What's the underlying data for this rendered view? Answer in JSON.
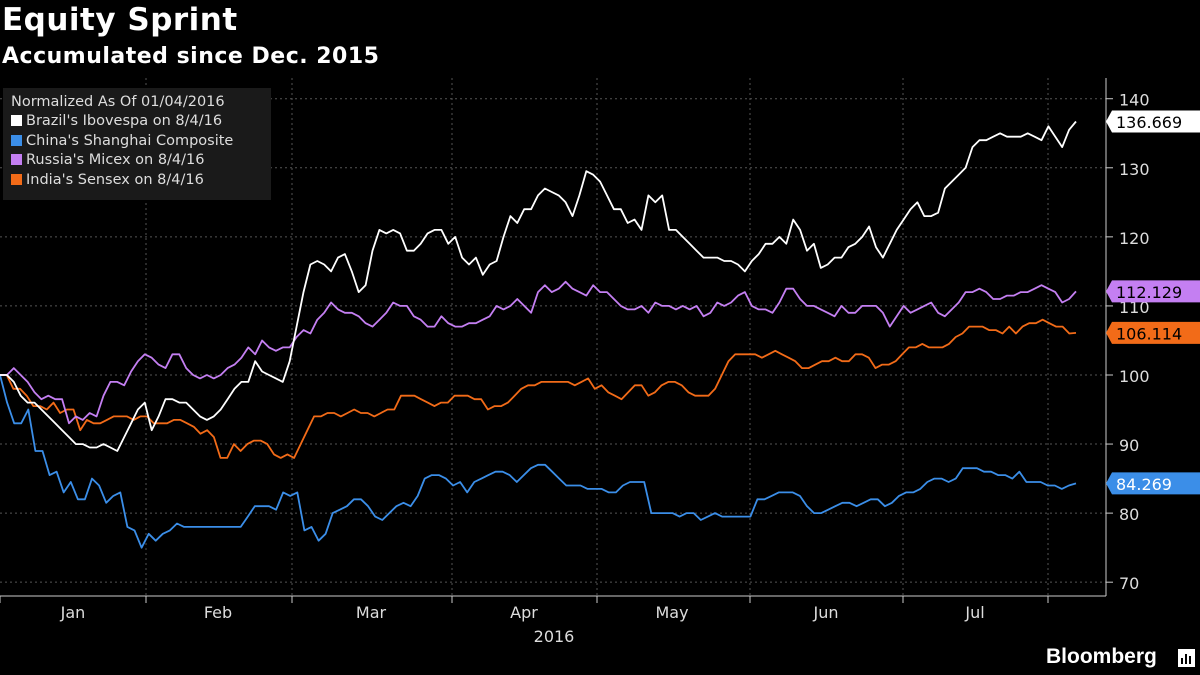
{
  "title": "Equity Sprint",
  "subtitle": "Accumulated since Dec. 2015",
  "brand": "Bloomberg",
  "brand_icon": "bloomberg-terminal-icon",
  "chart_data": {
    "type": "line",
    "x_year_label": "2016",
    "month_labels": [
      "Jan",
      "Feb",
      "Mar",
      "Apr",
      "May",
      "Jun",
      "Jul"
    ],
    "ylim": [
      68,
      143
    ],
    "y_ticks": [
      "70",
      "80",
      "90",
      "100",
      "110",
      "120",
      "130",
      "140"
    ],
    "grid": true,
    "legend_title": "Normalized As Of 01/04/2016",
    "legend_position": "top-left",
    "series": [
      {
        "name": "Brazil's Ibovespa on 8/4/16",
        "color": "#ffffff",
        "last_label": "136.669",
        "values": [
          100,
          100,
          99,
          97,
          96,
          96,
          95,
          94,
          93,
          92,
          91,
          90,
          90,
          89.5,
          89.5,
          90,
          89.5,
          89,
          91,
          93,
          95,
          96,
          92,
          94,
          96.5,
          96.5,
          96,
          96,
          95,
          94,
          93.5,
          94,
          95,
          96.5,
          98,
          99,
          99,
          102,
          100.5,
          100,
          99.5,
          99,
          102,
          107,
          112,
          116,
          116.5,
          116,
          115,
          117,
          117.5,
          115,
          112,
          113,
          118,
          121,
          120.5,
          121,
          120.5,
          118,
          118,
          119,
          120.5,
          121,
          121,
          119,
          120,
          117,
          116,
          117,
          114.5,
          116,
          116.5,
          120,
          123,
          122,
          124,
          124,
          126,
          127,
          126.5,
          126,
          125,
          123,
          126,
          129.5,
          129,
          128,
          126,
          124,
          124,
          122,
          122.5,
          121,
          126,
          125,
          126,
          121,
          121,
          120,
          119,
          118,
          117,
          117,
          117,
          116.5,
          116.5,
          116,
          115,
          116.5,
          117.5,
          119,
          119,
          120,
          119,
          122.5,
          121,
          118,
          119,
          115.5,
          116,
          117,
          117,
          118.5,
          119,
          120,
          121.5,
          118.5,
          117,
          119,
          121,
          122.5,
          124,
          125,
          123,
          123,
          123.5,
          127,
          128,
          129,
          130,
          133,
          134,
          134,
          134.5,
          135,
          134.5,
          134.5,
          134.5,
          135,
          134.5,
          134,
          136,
          134.5,
          133,
          135.5,
          136.7
        ]
      },
      {
        "name": "China's Shanghai Composite",
        "color": "#3b8ee8",
        "last_label": "84.269",
        "values": [
          100,
          96,
          93,
          93,
          95,
          89,
          89,
          85.5,
          86,
          83,
          84.5,
          82,
          82,
          85,
          84,
          81.5,
          82.5,
          83,
          78,
          77.5,
          75,
          77,
          76,
          77,
          77.5,
          78.5,
          78,
          78,
          78,
          78,
          78,
          78,
          78,
          78,
          78,
          79.5,
          81,
          81,
          81,
          80.5,
          83,
          82.5,
          83,
          77.5,
          78,
          76,
          77,
          80,
          80.5,
          81,
          82,
          82,
          81,
          79.5,
          79,
          80,
          81,
          81.5,
          81,
          82.5,
          85,
          85.5,
          85.5,
          85,
          84,
          84.5,
          83,
          84.5,
          85,
          85.5,
          86,
          86,
          85.5,
          84.5,
          85.5,
          86.5,
          87,
          87,
          86,
          85,
          84,
          84,
          84,
          83.5,
          83.5,
          83.5,
          83,
          83,
          84,
          84.5,
          84.5,
          84.5,
          80,
          80,
          80,
          80,
          79.5,
          80,
          80,
          79,
          79.5,
          80,
          79.5,
          79.5,
          79.5,
          79.5,
          79.5,
          82,
          82,
          82.5,
          83,
          83,
          83,
          82.5,
          81,
          80,
          80,
          80.5,
          81,
          81.5,
          81.5,
          81,
          81.5,
          82,
          82,
          81,
          81.5,
          82.5,
          83,
          83,
          83.5,
          84.5,
          85,
          85,
          84.5,
          85,
          86.5,
          86.5,
          86.5,
          86,
          86,
          85.5,
          85.5,
          85,
          86,
          84.5,
          84.5,
          84.5,
          84,
          84,
          83.5,
          84,
          84.3
        ]
      },
      {
        "name": "Russia's Micex on 8/4/16",
        "color": "#c47ff2",
        "last_label": "112.129",
        "values": [
          100,
          100,
          101,
          100,
          99,
          97.5,
          96.5,
          97,
          96.5,
          96.5,
          93,
          94,
          93.5,
          94.5,
          94,
          97,
          99,
          99,
          98.5,
          100.5,
          102,
          103,
          102.5,
          101.5,
          101,
          103,
          103,
          101,
          100,
          99.5,
          100,
          99.5,
          100,
          101,
          101.5,
          102.5,
          104,
          103,
          105,
          104,
          103.5,
          104,
          104,
          105.5,
          106.5,
          106,
          108,
          109,
          110.5,
          109.5,
          109,
          109,
          108.5,
          107.5,
          107,
          108,
          109,
          110.5,
          110,
          110,
          108.5,
          108,
          107,
          107,
          108.5,
          107.5,
          107,
          107,
          107.5,
          107.5,
          108,
          108.5,
          110,
          109.5,
          110,
          111,
          110,
          109,
          112,
          113,
          112,
          112.5,
          113.5,
          112.5,
          112,
          111.5,
          113,
          112,
          112,
          111,
          110,
          109.5,
          109.5,
          110,
          109,
          110.5,
          110,
          110,
          109.5,
          110,
          109.5,
          110,
          108.5,
          109,
          110.5,
          110,
          110.5,
          111.5,
          112,
          110,
          109.5,
          109.5,
          109,
          110.5,
          112.5,
          112.5,
          111,
          110,
          110,
          109.5,
          109,
          108.5,
          110,
          109,
          109,
          110,
          110,
          110,
          109,
          107,
          108.5,
          110,
          109,
          109.5,
          110,
          110.5,
          109,
          108.5,
          109.5,
          110.5,
          112,
          112,
          112.5,
          112,
          111,
          111,
          111.5,
          111.5,
          112,
          112,
          112.5,
          113,
          112.5,
          112,
          110.5,
          111,
          112.1
        ]
      },
      {
        "name": "India's Sensex on 8/4/16",
        "color": "#f26b18",
        "last_label": "106.114",
        "values": [
          100,
          100,
          98,
          98,
          97,
          95.5,
          95.5,
          95,
          96,
          94.5,
          95,
          95,
          92,
          93.5,
          93,
          93,
          93.5,
          94,
          94,
          94,
          93.5,
          94,
          94,
          93,
          93,
          93,
          93.5,
          93.5,
          93,
          92.5,
          91.5,
          92,
          91,
          88,
          88,
          90,
          89,
          90,
          90.5,
          90.5,
          90,
          88.5,
          88,
          88.5,
          88,
          90,
          92,
          94,
          94,
          94.5,
          94.5,
          94,
          94.5,
          95,
          94.5,
          94.5,
          94,
          94.5,
          95,
          95,
          97,
          97,
          97,
          96.5,
          96,
          95.5,
          96,
          96,
          97,
          97,
          97,
          96.5,
          96.5,
          95,
          95.5,
          95.5,
          96,
          97,
          98,
          98.5,
          98.5,
          99,
          99,
          99,
          99,
          99,
          98.5,
          99,
          99.5,
          98,
          98.5,
          97.5,
          97,
          96.5,
          97.5,
          98.5,
          98.5,
          97,
          97.5,
          98.5,
          99,
          99,
          98.5,
          97.5,
          97,
          97,
          97,
          98,
          100,
          102,
          103,
          103,
          103,
          103,
          102.5,
          103,
          103.5,
          103,
          102.5,
          102,
          101,
          101,
          101.5,
          102,
          102,
          102.5,
          102,
          102,
          103,
          103,
          102.5,
          101,
          101.5,
          101.5,
          102,
          103,
          104,
          104,
          104.5,
          104,
          104,
          104,
          104.5,
          105.5,
          106,
          107,
          107,
          107,
          106.5,
          106.5,
          106,
          107,
          106,
          107,
          107.5,
          107.5,
          108,
          107.5,
          107,
          107,
          106,
          106.1
        ]
      }
    ]
  }
}
